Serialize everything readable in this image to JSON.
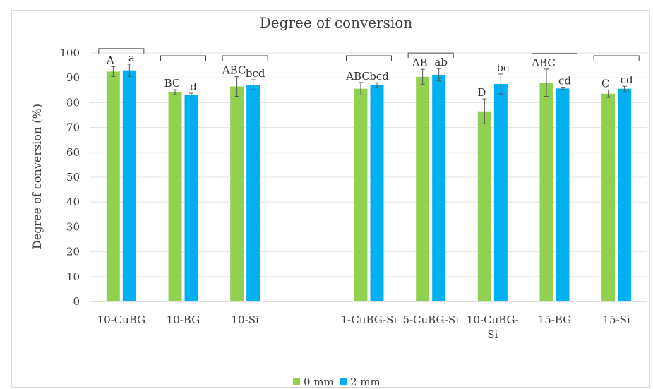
{
  "chart_data": {
    "type": "bar",
    "title": "Degree of conversion",
    "xlabel": "",
    "ylabel": "Degree of conversion (%)",
    "ylim": [
      0,
      100
    ],
    "yticks": [
      0,
      10,
      20,
      30,
      40,
      50,
      60,
      70,
      80,
      90,
      100
    ],
    "grid": true,
    "legend_position": "bottom",
    "categories": [
      [
        "10-CuBG"
      ],
      [
        "10-BG"
      ],
      [
        "10-Si"
      ],
      [
        ""
      ],
      [
        "1-CuBG-Si"
      ],
      [
        "5-CuBG-Si"
      ],
      [
        "10-CuBG-",
        "Si"
      ],
      [
        "15-BG"
      ],
      [
        "15-Si"
      ]
    ],
    "series": [
      {
        "name": "0 mm",
        "color": "#92d050",
        "values": [
          92.5,
          84.2,
          86.5,
          null,
          85.6,
          90.4,
          76.5,
          88.0,
          83.6
        ],
        "errors": [
          2.0,
          1.0,
          4.0,
          null,
          2.5,
          3.0,
          5.0,
          5.5,
          1.5
        ],
        "letters": [
          "A",
          "BC",
          "ABC",
          "",
          "ABC",
          "AB",
          "D",
          "ABC",
          "C"
        ]
      },
      {
        "name": "2 mm",
        "color": "#00b0f0",
        "values": [
          93.0,
          83.0,
          87.2,
          null,
          87.0,
          91.2,
          87.5,
          85.7,
          85.6
        ],
        "errors": [
          2.5,
          0.8,
          2.0,
          null,
          1.0,
          2.5,
          4.0,
          0.5,
          1.0
        ],
        "letters": [
          "a",
          "d",
          "bcd",
          "",
          "bcd",
          "ab",
          "bc",
          "cd",
          "cd"
        ]
      }
    ],
    "brackets_over_categories": [
      0,
      1,
      2,
      4,
      5,
      7,
      8
    ]
  }
}
